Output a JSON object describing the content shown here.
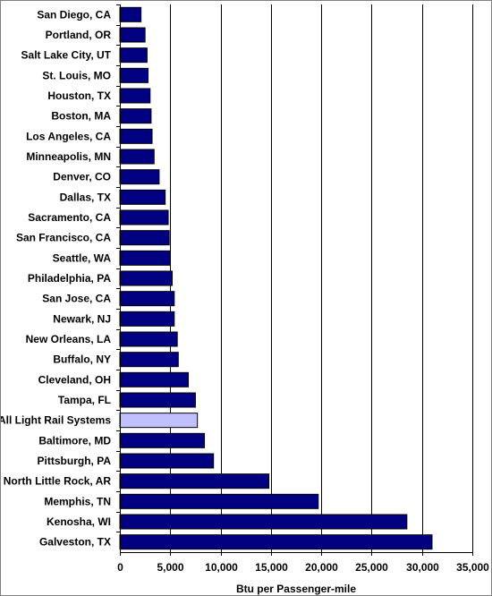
{
  "chart_data": {
    "type": "bar",
    "orientation": "horizontal",
    "categories": [
      "San Diego, CA",
      "Portland, OR",
      "Salt Lake City, UT",
      "St. Louis, MO",
      "Houston, TX",
      "Boston, MA",
      "Los Angeles, CA",
      "Minneapolis, MN",
      "Denver, CO",
      "Dallas, TX",
      "Sacramento, CA",
      "San Francisco, CA",
      "Seattle, WA",
      "Philadelphia, PA",
      "San Jose, CA",
      "Newark, NJ",
      "New Orleans, LA",
      "Buffalo, NY",
      "Cleveland, OH",
      "Tampa, FL",
      "All Light Rail Systems",
      "Baltimore, MD",
      "Pittsburgh, PA",
      "North Little Rock, AR",
      "Memphis, TN",
      "Kenosha, WI",
      "Galveston, TX"
    ],
    "values": [
      2100,
      2500,
      2700,
      2800,
      3000,
      3100,
      3200,
      3400,
      3900,
      4500,
      4800,
      4900,
      5000,
      5200,
      5400,
      5400,
      5700,
      5800,
      6800,
      7500,
      7700,
      8400,
      9300,
      14800,
      19700,
      28500,
      31000
    ],
    "highlight": [
      "All Light Rail Systems"
    ],
    "xlabel": "Btu per Passenger-mile",
    "ylabel": "",
    "xlim": [
      0,
      35000
    ],
    "xticks": [
      0,
      5000,
      10000,
      15000,
      20000,
      25000,
      30000,
      35000
    ],
    "xtick_labels": [
      "0",
      "5,000",
      "10,000",
      "15,000",
      "20,000",
      "25,000",
      "30,000",
      "35,000"
    ],
    "grid": "vertical",
    "legend": "none",
    "colors": {
      "bar": "#000080",
      "highlight_bar": "#c0c0ff",
      "bar_border": "#000000",
      "grid": "#000000",
      "plot_background": "#ffffff"
    }
  }
}
